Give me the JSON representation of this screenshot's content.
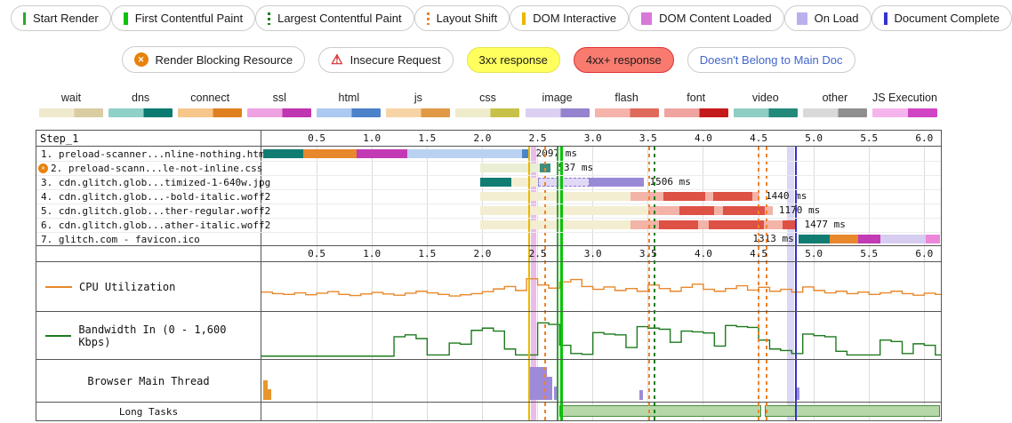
{
  "legend_markers": {
    "items": [
      {
        "label": "Start Render",
        "style": "solid",
        "w": 3,
        "color": "#2ba82b"
      },
      {
        "label": "First Contentful Paint",
        "style": "solid",
        "w": 5,
        "color": "#0cc20c"
      },
      {
        "label": "Largest Contentful Paint",
        "style": "dashed",
        "w": 3,
        "color": "#1d7d1d"
      },
      {
        "label": "Layout Shift",
        "style": "dashed",
        "w": 3,
        "color": "#f08228"
      },
      {
        "label": "DOM Interactive",
        "style": "solid",
        "w": 4,
        "color": "#e9b800"
      },
      {
        "label": "DOM Content Loaded",
        "style": "band",
        "w": 12,
        "color": "#d878d8"
      },
      {
        "label": "On Load",
        "style": "band",
        "w": 12,
        "color": "#b9b0ee"
      },
      {
        "label": "Document Complete",
        "style": "solid",
        "w": 4,
        "color": "#3333cc"
      }
    ]
  },
  "legend_badges": {
    "items": [
      {
        "label": "Render Blocking Resource",
        "icon": "render-blocking"
      },
      {
        "label": "Insecure Request",
        "icon": "insecure"
      },
      {
        "label": "3xx response",
        "variant": "yellow"
      },
      {
        "label": "4xx+ response",
        "variant": "red"
      },
      {
        "label": "Doesn't Belong to Main Doc",
        "variant": "blue"
      }
    ]
  },
  "resource_legend": {
    "items": [
      {
        "label": "wait",
        "light": "#efe9cd",
        "dark": "#d9cda1"
      },
      {
        "label": "dns",
        "light": "#8ed1c8",
        "dark": "#0b7a70"
      },
      {
        "label": "connect",
        "light": "#f6c68b",
        "dark": "#e0801f"
      },
      {
        "label": "ssl",
        "light": "#efa2e2",
        "dark": "#bf35b2"
      },
      {
        "label": "html",
        "light": "#abc9f1",
        "dark": "#4b82ca"
      },
      {
        "label": "js",
        "light": "#f7d4a5",
        "dark": "#e09a46"
      },
      {
        "label": "css",
        "light": "#efeccb",
        "dark": "#c7c14a"
      },
      {
        "label": "image",
        "light": "#dbd0f2",
        "dark": "#9583cf"
      },
      {
        "label": "flash",
        "light": "#f6b3ab",
        "dark": "#df6a5c"
      },
      {
        "label": "font",
        "light": "#f0a4a0",
        "dark": "#c61b1b"
      },
      {
        "label": "video",
        "light": "#8fcec2",
        "dark": "#23897a"
      },
      {
        "label": "other",
        "light": "#d9d9d9",
        "dark": "#8f8f8f"
      },
      {
        "label": "JS Execution",
        "light": "#f6b4ec",
        "dark": "#d145c5"
      }
    ]
  },
  "chart_data": {
    "type": "waterfall",
    "step_label": "Step_1",
    "axis": {
      "unit": "seconds",
      "min": 0,
      "max": 6.15,
      "ticks": [
        0.5,
        1.0,
        1.5,
        2.0,
        2.5,
        3.0,
        3.5,
        4.0,
        4.5,
        5.0,
        5.5,
        6.0
      ]
    },
    "bar_colors": {
      "dns": "#117c72",
      "connect": "#e8882c",
      "ssl": "#c23ab4",
      "html_light": "#b9d2f2",
      "html_dark": "#4a84cc",
      "css_light": "#e9efd4",
      "css_dark": "#3e8e7e",
      "img_light": "#e2d9f6",
      "img_dark": "#9a89d6",
      "font_light": "#f3b3a7",
      "font_dark": "#de5145",
      "wait": "#f3eed2",
      "other_light": "#d6cdf0",
      "jsexec": "#ec86da"
    },
    "requests": [
      {
        "num": 1,
        "label": "1. preload-scanner...nline-nothing.html",
        "ms": "2097 ms",
        "ms_value": 2097,
        "ms_anchor": 2.46,
        "ms_side": "after",
        "blocked": false,
        "segments": [
          {
            "k": "dns",
            "s": 0.02,
            "e": 0.38
          },
          {
            "k": "connect",
            "s": 0.38,
            "e": 0.86
          },
          {
            "k": "ssl",
            "s": 0.86,
            "e": 1.32
          },
          {
            "k": "html_light",
            "s": 1.32,
            "e": 2.36
          },
          {
            "k": "html_dark",
            "s": 2.36,
            "e": 2.43
          }
        ]
      },
      {
        "num": 2,
        "label": "2. preload-scann...le-not-inline.css",
        "ms": "537 ms",
        "ms_value": 537,
        "ms_anchor": 2.66,
        "ms_side": "after",
        "blocked": true,
        "segments": [
          {
            "k": "css_light",
            "s": 1.98,
            "e": 2.52
          },
          {
            "k": "css_dark",
            "s": 2.52,
            "e": 2.62
          }
        ]
      },
      {
        "num": 3,
        "label": "3. cdn.glitch.glob...timized-1-640w.jpg",
        "ms": "1506 ms",
        "ms_value": 1506,
        "ms_anchor": 3.49,
        "ms_side": "after",
        "blocked": false,
        "segments": [
          {
            "k": "dns",
            "s": 1.98,
            "e": 2.26
          },
          {
            "k": "wait",
            "s": 2.26,
            "e": 2.5
          },
          {
            "k": "img_light",
            "s": 2.5,
            "e": 2.97,
            "dashed": true
          },
          {
            "k": "img_dark",
            "s": 2.97,
            "e": 3.46
          }
        ]
      },
      {
        "num": 4,
        "label": "4. cdn.glitch.glob...-bold-italic.woff2",
        "ms": "1440 ms",
        "ms_value": 1440,
        "ms_anchor": 4.54,
        "ms_side": "after",
        "blocked": false,
        "segments": [
          {
            "k": "wait",
            "s": 1.98,
            "e": 3.34
          },
          {
            "k": "font_light",
            "s": 3.34,
            "e": 3.64
          },
          {
            "k": "font_dark",
            "s": 3.64,
            "e": 4.02
          },
          {
            "k": "font_light",
            "s": 4.02,
            "e": 4.09
          },
          {
            "k": "font_dark",
            "s": 4.09,
            "e": 4.44
          },
          {
            "k": "font_light",
            "s": 4.44,
            "e": 4.51
          }
        ]
      },
      {
        "num": 5,
        "label": "5. cdn.glitch.glob...ther-regular.woff2",
        "ms": "1170 ms",
        "ms_value": 1170,
        "ms_anchor": 4.66,
        "ms_side": "after",
        "blocked": false,
        "segments": [
          {
            "k": "wait",
            "s": 1.98,
            "e": 3.5
          },
          {
            "k": "font_light",
            "s": 3.5,
            "e": 3.78
          },
          {
            "k": "font_dark",
            "s": 3.78,
            "e": 4.1
          },
          {
            "k": "font_light",
            "s": 4.1,
            "e": 4.18
          },
          {
            "k": "font_dark",
            "s": 4.18,
            "e": 4.56
          },
          {
            "k": "font_light",
            "s": 4.56,
            "e": 4.63
          }
        ]
      },
      {
        "num": 6,
        "label": "6. cdn.glitch.glob...ather-italic.woff2",
        "ms": "1477 ms",
        "ms_value": 1477,
        "ms_anchor": 4.89,
        "ms_side": "after",
        "blocked": false,
        "segments": [
          {
            "k": "wait",
            "s": 1.98,
            "e": 3.34
          },
          {
            "k": "font_light",
            "s": 3.34,
            "e": 3.6
          },
          {
            "k": "font_dark",
            "s": 3.6,
            "e": 3.95
          },
          {
            "k": "font_light",
            "s": 3.95,
            "e": 4.05
          },
          {
            "k": "font_dark",
            "s": 4.05,
            "e": 4.55
          },
          {
            "k": "font_light",
            "s": 4.55,
            "e": 4.72
          },
          {
            "k": "font_dark",
            "s": 4.72,
            "e": 4.85
          }
        ]
      },
      {
        "num": 7,
        "label": "7. glitch.com - favicon.ico",
        "ms": "1313 ms",
        "ms_value": 1313,
        "ms_anchor": 4.82,
        "ms_side": "before",
        "blocked": false,
        "segments": [
          {
            "k": "dns",
            "s": 4.86,
            "e": 5.14
          },
          {
            "k": "connect",
            "s": 5.14,
            "e": 5.4
          },
          {
            "k": "ssl",
            "s": 5.4,
            "e": 5.6
          },
          {
            "k": "other_light",
            "s": 5.6,
            "e": 6.01
          },
          {
            "k": "jsexec",
            "s": 6.01,
            "e": 6.14
          }
        ]
      }
    ],
    "events": [
      {
        "name": "DOM Interactive",
        "time": 2.42,
        "style": "solid",
        "color": "#e9b800",
        "w": 2
      },
      {
        "name": "Layout Shift 1",
        "time": 2.57,
        "style": "dashed",
        "color": "#f08228",
        "w": 2
      },
      {
        "name": "Start Render",
        "time": 2.68,
        "style": "solid",
        "color": "#2ba82b",
        "w": 2
      },
      {
        "name": "First Contentful Paint",
        "time": 2.72,
        "style": "solid",
        "color": "#0cc20c",
        "w": 3
      },
      {
        "name": "Layout Shift 2",
        "time": 3.51,
        "style": "dashed",
        "color": "#f08228",
        "w": 2
      },
      {
        "name": "Largest Contentful Paint",
        "time": 3.56,
        "style": "dashed",
        "color": "#1d7d1d",
        "w": 2
      },
      {
        "name": "Layout Shift 3",
        "time": 4.5,
        "style": "dashed",
        "color": "#f08228",
        "w": 2
      },
      {
        "name": "Layout Shift 4",
        "time": 4.57,
        "style": "dashed",
        "color": "#f08228",
        "w": 2
      },
      {
        "name": "Document Complete",
        "time": 4.84,
        "style": "solid",
        "color": "#3333cc",
        "w": 2
      }
    ],
    "bands": [
      {
        "name": "DOM Content Loaded",
        "start": 2.44,
        "end": 2.49,
        "color": "#d878d8"
      },
      {
        "name": "On Load",
        "start": 4.76,
        "end": 4.82,
        "color": "#b9b0ee"
      }
    ],
    "cpu": {
      "label": "CPU Utilization",
      "color": "#e8882c",
      "interval": 0.1,
      "values": [
        44,
        40,
        38,
        42,
        37,
        41,
        45,
        38,
        35,
        39,
        43,
        39,
        36,
        41,
        46,
        42,
        38,
        34,
        37,
        40,
        45,
        52,
        58,
        48,
        78,
        62,
        54,
        70,
        76,
        58,
        51,
        57,
        48,
        53,
        46,
        62,
        53,
        46,
        56,
        64,
        51,
        46,
        53,
        60,
        49,
        56,
        46,
        51,
        44,
        57,
        48,
        42,
        46,
        40,
        44,
        38,
        42,
        46,
        40,
        36,
        41,
        38
      ]
    },
    "bandwidth": {
      "label": "Bandwidth In (0 - 1,600 Kbps)",
      "color": "#1e7a1e",
      "max_kbps": 1600,
      "interval": 0.1,
      "values": [
        3,
        3,
        3,
        3,
        3,
        3,
        3,
        3,
        3,
        3,
        3,
        3,
        55,
        60,
        50,
        6,
        6,
        38,
        35,
        72,
        78,
        70,
        22,
        6,
        6,
        92,
        88,
        32,
        10,
        8,
        66,
        62,
        60,
        26,
        82,
        78,
        75,
        40,
        70,
        68,
        65,
        30,
        85,
        82,
        80,
        46,
        22,
        18,
        10,
        62,
        58,
        55,
        16,
        6,
        6,
        6,
        46,
        42,
        10,
        36,
        32,
        6
      ]
    },
    "main_thread": {
      "label": "Browser Main Thread",
      "bars": [
        {
          "s": 0.02,
          "e": 0.06,
          "h": 55,
          "c": "#e8962c"
        },
        {
          "s": 0.06,
          "e": 0.09,
          "h": 30,
          "c": "#e8962c"
        },
        {
          "s": 2.42,
          "e": 2.58,
          "h": 92,
          "c": "#9d8ad8"
        },
        {
          "s": 2.58,
          "e": 2.63,
          "h": 66,
          "c": "#9d8ad8"
        },
        {
          "s": 2.65,
          "e": 2.69,
          "h": 38,
          "c": "#9d8ad8"
        },
        {
          "s": 3.42,
          "e": 3.45,
          "h": 28,
          "c": "#9d8ad8"
        },
        {
          "s": 4.84,
          "e": 4.87,
          "h": 34,
          "c": "#9d8ad8"
        }
      ]
    },
    "long_tasks": {
      "label": "Long Tasks",
      "fill": "#b6d7a8",
      "border": "#4a8c3f",
      "bars": [
        {
          "s": 2.7,
          "e": 4.52
        },
        {
          "s": 4.56,
          "e": 6.14
        }
      ]
    }
  }
}
